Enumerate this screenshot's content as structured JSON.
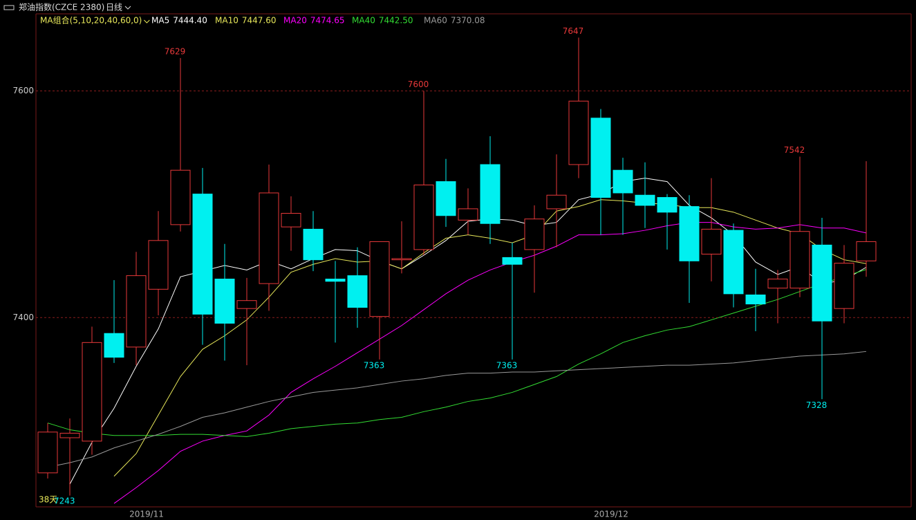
{
  "chart_data": {
    "type": "candlestick",
    "title": "郑油指数(CZCE 2380)",
    "period": "日线",
    "indicator_label": "MA组合(5,10,20,40,60,0)",
    "day_count": "38天",
    "categories": [
      null,
      null,
      null,
      null,
      null,
      "2019/11",
      null,
      null,
      null,
      null,
      null,
      null,
      null,
      null,
      null,
      null,
      null,
      null,
      null,
      null,
      null,
      null,
      null,
      null,
      null,
      null,
      "2019/12",
      null,
      null,
      null,
      null,
      null,
      null,
      null,
      null,
      null,
      null,
      null
    ],
    "open": [
      7263,
      7294,
      7291,
      7386,
      7374,
      7425,
      7482,
      7509,
      7434,
      7408,
      7430,
      7480,
      7478,
      7434,
      7437,
      7401,
      7451,
      7460,
      7520,
      7486,
      7535,
      7453,
      7460,
      7496,
      7535,
      7576,
      7530,
      7508,
      7506,
      7498,
      7456,
      7477,
      7420,
      7426,
      7426,
      7464,
      7408,
      7450
    ],
    "high": [
      7307,
      7311,
      7392,
      7433,
      7458,
      7494,
      7629,
      7532,
      7465,
      7435,
      7535,
      7507,
      7494,
      7450,
      7462,
      7467,
      7485,
      7600,
      7540,
      7514,
      7560,
      7466,
      7499,
      7544,
      7647,
      7584,
      7541,
      7537,
      7509,
      7508,
      7523,
      7483,
      7443,
      7442,
      7542,
      7488,
      7464,
      7538
    ],
    "low": [
      7258,
      7243,
      7279,
      7360,
      7358,
      7402,
      7476,
      7376,
      7362,
      7358,
      7406,
      7459,
      7441,
      7378,
      7391,
      7363,
      7439,
      7455,
      7480,
      7473,
      7465,
      7363,
      7422,
      7462,
      7523,
      7473,
      7473,
      7479,
      7460,
      7413,
      7432,
      7409,
      7388,
      7395,
      7418,
      7328,
      7395,
      7436
    ],
    "close": [
      7299,
      7298,
      7378,
      7365,
      7437,
      7468,
      7530,
      7403,
      7395,
      7415,
      7510,
      7492,
      7451,
      7432,
      7409,
      7467,
      7452,
      7517,
      7490,
      7496,
      7483,
      7447,
      7487,
      7508,
      7591,
      7506,
      7510,
      7499,
      7493,
      7450,
      7478,
      7421,
      7412,
      7434,
      7476,
      7397,
      7448,
      7467
    ],
    "labeled_highs": [
      6,
      17,
      24,
      34
    ],
    "labeled_lows": [
      15,
      21,
      35
    ],
    "range_low_index": 1,
    "up_color": "#e8393a",
    "down_color": "#00f0f0",
    "series": [
      {
        "name": "MA5",
        "color": "#ffffff",
        "last_label": "7444.40",
        "values": [
          null,
          7253,
          7290,
          7320,
          7357,
          7390,
          7436,
          7441,
          7446,
          7442,
          7450,
          7443,
          7452,
          7460,
          7459,
          7450,
          7443,
          7455,
          7468,
          7485,
          7487,
          7486,
          7481,
          7484,
          7504,
          7509,
          7520,
          7523,
          7520,
          7499,
          7488,
          7473,
          7449,
          7438,
          7445,
          7430,
          7433,
          7444.4
        ]
      },
      {
        "name": "MA10",
        "color": "#e8e85a",
        "last_label": "7447.60",
        "values": [
          null,
          null,
          null,
          7260,
          7280,
          7314,
          7348,
          7372,
          7384,
          7398,
          7418,
          7440,
          7447,
          7452,
          7449,
          7450,
          7443,
          7457,
          7470,
          7473,
          7470,
          7466,
          7473,
          7494,
          7498,
          7504,
          7503,
          7501,
          7500,
          7497,
          7497,
          7493,
          7486,
          7479,
          7474,
          7460,
          7451,
          7447.6
        ]
      },
      {
        "name": "MA20",
        "color": "#ff00ff",
        "last_label": "7474.65",
        "values": [
          null,
          null,
          null,
          7236,
          7250,
          7265,
          7282,
          7291,
          7296,
          7300,
          7314,
          7334,
          7346,
          7357,
          7369,
          7381,
          7393,
          7407,
          7421,
          7433,
          7442,
          7449,
          7455,
          7463,
          7473,
          7473,
          7474,
          7477,
          7481,
          7484,
          7484,
          7480,
          7478,
          7479,
          7482,
          7479,
          7479,
          7474.65
        ]
      },
      {
        "name": "MA40",
        "color": "#33dd33",
        "last_label": "7442.50",
        "values": [
          7307,
          7301,
          7298,
          7296,
          7296,
          7296,
          7297,
          7297,
          7296,
          7295,
          7298,
          7302,
          7304,
          7306,
          7307,
          7310,
          7312,
          7317,
          7321,
          7326,
          7329,
          7334,
          7341,
          7348,
          7359,
          7368,
          7378,
          7384,
          7389,
          7392,
          7398,
          7404,
          7410,
          7416,
          7423,
          7430,
          7436,
          7442.5
        ]
      },
      {
        "name": "MA60",
        "color": "#9a9a9a",
        "last_label": "7370.08",
        "values": [
          7268,
          7272,
          7277,
          7285,
          7291,
          7297,
          7304,
          7312,
          7316,
          7321,
          7326,
          7330,
          7334,
          7336,
          7338,
          7341,
          7344,
          7346,
          7349,
          7351,
          7351,
          7352,
          7352,
          7353,
          7354,
          7355,
          7356,
          7357,
          7358,
          7358,
          7359,
          7360,
          7362,
          7364,
          7366,
          7367,
          7368,
          7370.08
        ]
      }
    ],
    "ylim": [
      7233,
      7668
    ],
    "yticks": [
      7400,
      7600
    ],
    "grid": true
  }
}
